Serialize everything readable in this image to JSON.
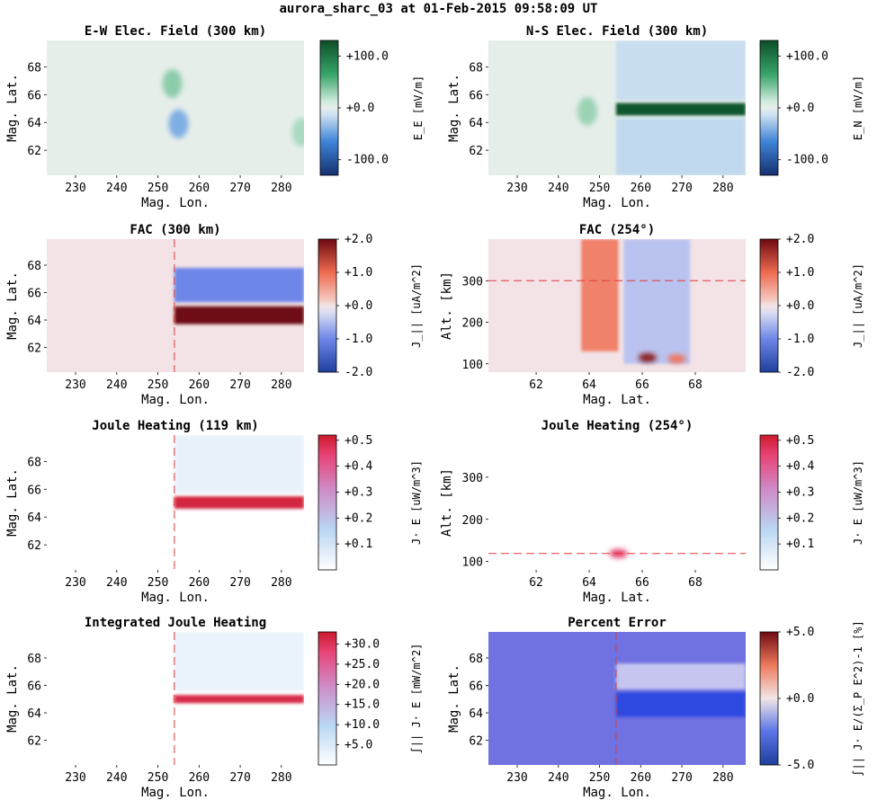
{
  "suptitle": "aurora_sharc_03 at 01-Feb-2015 09:58:09 UT",
  "colors": {
    "bgreen_low": "#15306e",
    "bgreen_mid": "#e6eeea",
    "bgreen_high": "#0d4f28",
    "rdbu_low": "#1e3f9c",
    "rdbu_mid": "#f3e3e6",
    "rdbu_high": "#6e0a12",
    "heat_low": "#ffffff",
    "heat_high": "#cc1a2c",
    "err_field": "#6f72e0",
    "err_band": "#2d48e0",
    "err_light": "#c5c5f0",
    "cut_line": "#e03a3a"
  },
  "chart_data": [
    {
      "type": "heatmap",
      "panel": "ew_field",
      "title": "E-W Elec. Field (300 km)",
      "xlabel": "Mag. Lon.",
      "ylabel": "Mag. Lat.",
      "xlim": [
        223,
        285.5
      ],
      "ylim": [
        60.2,
        69.9
      ],
      "xticks": [
        "230",
        "240",
        "250",
        "260",
        "270",
        "280"
      ],
      "yticks": [
        "62",
        "64",
        "66",
        "68"
      ],
      "colormap": "blue-white-green",
      "clim": [
        -130,
        130
      ],
      "colorbar_ticks": [
        "+100.0",
        "+0.0",
        "-100.0"
      ],
      "colorbar_label": "E_E [mV/m]",
      "features": [
        {
          "shape": "blob",
          "lon": 253.5,
          "lat": 66.8,
          "value": 35
        },
        {
          "shape": "blob",
          "lon": 255,
          "lat": 63.9,
          "value": -42
        },
        {
          "shape": "blob",
          "lon": 285,
          "lat": 63.3,
          "value": 25
        }
      ]
    },
    {
      "type": "heatmap",
      "panel": "ns_field",
      "title": "N-S Elec. Field (300 km)",
      "xlabel": "Mag. Lon.",
      "ylabel": "Mag. Lat.",
      "xlim": [
        223,
        285.5
      ],
      "ylim": [
        60.2,
        69.9
      ],
      "xticks": [
        "230",
        "240",
        "250",
        "260",
        "270",
        "280"
      ],
      "yticks": [
        "62",
        "64",
        "66",
        "68"
      ],
      "colormap": "blue-white-green",
      "clim": [
        -130,
        130
      ],
      "colorbar_ticks": [
        "+100.0",
        "+0.0",
        "-100.0"
      ],
      "colorbar_label": "E_N [mV/m]",
      "features": [
        {
          "shape": "band",
          "lon": [
            254,
            285.5
          ],
          "lat": [
            64.5,
            65.4
          ],
          "value": 125
        },
        {
          "shape": "band",
          "lon": [
            254,
            285.5
          ],
          "lat": [
            65.6,
            69.9
          ],
          "value": -15
        },
        {
          "shape": "band",
          "lon": [
            254,
            285.5
          ],
          "lat": [
            60.2,
            64.3
          ],
          "value": -18
        },
        {
          "shape": "blob",
          "lon": 247,
          "lat": 64.8,
          "value": 30
        }
      ]
    },
    {
      "type": "heatmap",
      "panel": "fac_300",
      "title": "FAC (300 km)",
      "xlabel": "Mag. Lon.",
      "ylabel": "Mag. Lat.",
      "xlim": [
        223,
        285.5
      ],
      "ylim": [
        60.2,
        69.9
      ],
      "xticks": [
        "230",
        "240",
        "250",
        "260",
        "270",
        "280"
      ],
      "yticks": [
        "62",
        "64",
        "66",
        "68"
      ],
      "colormap": "red-white-blue",
      "clim": [
        -2,
        2
      ],
      "colorbar_ticks": [
        "+2.0",
        "+1.0",
        "+0.0",
        "-1.0",
        "-2.0"
      ],
      "colorbar_label": "J_|| [uA/m^2]",
      "cut_line": {
        "orientation": "vertical",
        "value": 254
      },
      "features": [
        {
          "shape": "band",
          "lon": [
            254,
            285.5
          ],
          "lat": [
            65.3,
            67.8
          ],
          "value": -1.0
        },
        {
          "shape": "band",
          "lon": [
            254,
            285.5
          ],
          "lat": [
            63.7,
            65.0
          ],
          "value": 2.0
        }
      ]
    },
    {
      "type": "heatmap",
      "panel": "fac_254",
      "title": "FAC (254°)",
      "xlabel": "Mag. Lat.",
      "ylabel": "Alt. [km]",
      "xlim": [
        60.2,
        69.9
      ],
      "ylim": [
        80,
        400
      ],
      "xticks": [
        "62",
        "64",
        "66",
        "68"
      ],
      "yticks": [
        "100",
        "200",
        "300"
      ],
      "colormap": "red-white-blue",
      "clim": [
        -2,
        2
      ],
      "colorbar_ticks": [
        "+2.0",
        "+1.0",
        "+0.0",
        "-1.0",
        "-2.0"
      ],
      "colorbar_label": "J_|| [uA/m^2]",
      "cut_line": {
        "orientation": "horizontal",
        "value": 300
      },
      "features": [
        {
          "shape": "band",
          "lat": [
            63.7,
            65.1
          ],
          "alt": [
            130,
            400
          ],
          "value": 0.8
        },
        {
          "shape": "band",
          "lat": [
            65.3,
            67.8
          ],
          "alt": [
            100,
            400
          ],
          "value": -0.45
        },
        {
          "shape": "blob",
          "lat": 66.2,
          "alt": 115,
          "value": 1.8
        },
        {
          "shape": "blob",
          "lat": 67.3,
          "alt": 112,
          "value": 0.9
        }
      ]
    },
    {
      "type": "heatmap",
      "panel": "joule_119",
      "title": "Joule Heating (119 km)",
      "xlabel": "Mag. Lon.",
      "ylabel": "Mag. Lat.",
      "xlim": [
        223,
        285.5
      ],
      "ylim": [
        60.2,
        69.9
      ],
      "xticks": [
        "230",
        "240",
        "250",
        "260",
        "270",
        "280"
      ],
      "yticks": [
        "62",
        "64",
        "66",
        "68"
      ],
      "colormap": "white-blue-red",
      "clim": [
        0,
        0.52
      ],
      "colorbar_ticks": [
        "+0.5",
        "+0.4",
        "+0.3",
        "+0.2",
        "+0.1"
      ],
      "colorbar_label": "J· E [uW/m^3]",
      "cut_line": {
        "orientation": "vertical",
        "value": 254
      },
      "features": [
        {
          "shape": "band",
          "lon": [
            254,
            285.5
          ],
          "lat": [
            64.6,
            65.5
          ],
          "value": 0.5
        },
        {
          "shape": "band",
          "lon": [
            254,
            285.5
          ],
          "lat": [
            65.7,
            69.9
          ],
          "value": 0.05
        }
      ]
    },
    {
      "type": "heatmap",
      "panel": "joule_254",
      "title": "Joule Heating (254°)",
      "xlabel": "Mag. Lat.",
      "ylabel": "Alt. [km]",
      "xlim": [
        60.2,
        69.9
      ],
      "ylim": [
        80,
        400
      ],
      "xticks": [
        "62",
        "64",
        "66",
        "68"
      ],
      "yticks": [
        "100",
        "200",
        "300"
      ],
      "colormap": "white-blue-red",
      "clim": [
        0,
        0.52
      ],
      "colorbar_ticks": [
        "+0.5",
        "+0.4",
        "+0.3",
        "+0.2",
        "+0.1"
      ],
      "colorbar_label": "J· E [uW/m^3]",
      "cut_line": {
        "orientation": "horizontal",
        "value": 119
      },
      "features": [
        {
          "shape": "blob",
          "lat": 65.1,
          "alt": 119,
          "value": 0.45
        }
      ]
    },
    {
      "type": "heatmap",
      "panel": "integrated_joule",
      "title": "Integrated Joule Heating",
      "xlabel": "Mag. Lon.",
      "ylabel": "Mag. Lat.",
      "xlim": [
        223,
        285.5
      ],
      "ylim": [
        60.2,
        69.9
      ],
      "xticks": [
        "230",
        "240",
        "250",
        "260",
        "270",
        "280"
      ],
      "yticks": [
        "62",
        "64",
        "66",
        "68"
      ],
      "colormap": "white-blue-red",
      "clim": [
        0,
        33
      ],
      "colorbar_ticks": [
        "+30.0",
        "+25.0",
        "+20.0",
        "+15.0",
        "+10.0",
        "+5.0"
      ],
      "colorbar_label": "∫|| J· E [mW/m^2]",
      "cut_line": {
        "orientation": "vertical",
        "value": 254
      },
      "features": [
        {
          "shape": "band",
          "lon": [
            254,
            285.5
          ],
          "lat": [
            64.7,
            65.3
          ],
          "value": 31
        },
        {
          "shape": "band",
          "lon": [
            254,
            285.5
          ],
          "lat": [
            65.6,
            69.9
          ],
          "value": 3
        }
      ]
    },
    {
      "type": "heatmap",
      "panel": "percent_error",
      "title": "Percent Error",
      "xlabel": "Mag. Lon.",
      "ylabel": "Mag. Lat.",
      "xlim": [
        223,
        285.5
      ],
      "ylim": [
        60.2,
        69.9
      ],
      "xticks": [
        "230",
        "240",
        "250",
        "260",
        "270",
        "280"
      ],
      "yticks": [
        "62",
        "64",
        "66",
        "68"
      ],
      "colormap": "blue-white-red",
      "clim": [
        -5,
        5
      ],
      "colorbar_ticks": [
        "+5.0",
        "+0.0",
        "-5.0"
      ],
      "colorbar_label": "∫|| J· E/(Σ_P E^2)-1 [%]",
      "cut_line": {
        "orientation": "vertical",
        "value": 254
      },
      "features": [
        {
          "shape": "band",
          "lon": [
            254,
            285.5
          ],
          "lat": [
            65.7,
            67.6
          ],
          "value": -1.2
        },
        {
          "shape": "band",
          "lon": [
            254,
            285.5
          ],
          "lat": [
            63.7,
            65.5
          ],
          "value": -4.6
        }
      ]
    }
  ]
}
